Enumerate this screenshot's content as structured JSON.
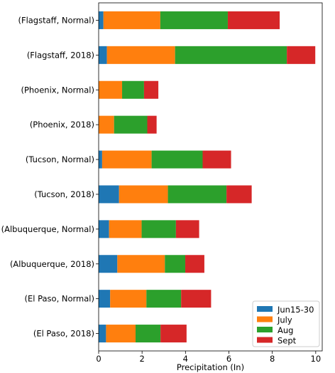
{
  "chart_data": {
    "type": "bar",
    "orientation": "horizontal",
    "stacked": true,
    "title": "",
    "xlabel": "Precipitation (In)",
    "ylabel": "",
    "xlim": [
      0,
      10.3
    ],
    "xticks": [
      "0",
      "2",
      "4",
      "6",
      "8",
      "10"
    ],
    "grid": false,
    "legend_position": "lower-right",
    "categories": [
      "(Flagstaff, Normal)",
      "(Flagstaff, 2018)",
      "(Phoenix, Normal)",
      "(Phoenix, 2018)",
      "(Tucson, Normal)",
      "(Tucson, 2018)",
      "(Albuquerque, Normal)",
      "(Albuquerque, 2018)",
      "(El Paso, Normal)",
      "(El Paso, 2018)"
    ],
    "series": [
      {
        "name": "Jun15-30",
        "color": "#1f77b4",
        "values": [
          0.22,
          0.38,
          0.0,
          0.0,
          0.16,
          0.94,
          0.48,
          0.86,
          0.53,
          0.34
        ]
      },
      {
        "name": "July",
        "color": "#ff7f0e",
        "values": [
          2.62,
          3.14,
          1.08,
          0.71,
          2.28,
          2.25,
          1.5,
          2.19,
          1.67,
          1.36
        ]
      },
      {
        "name": "Aug",
        "color": "#2ca02c",
        "values": [
          3.11,
          5.15,
          1.01,
          1.53,
          2.35,
          2.7,
          1.58,
          0.94,
          1.6,
          1.15
        ]
      },
      {
        "name": "Sept",
        "color": "#d62728",
        "values": [
          2.39,
          1.31,
          0.66,
          0.43,
          1.31,
          1.16,
          1.07,
          0.88,
          1.38,
          1.2
        ]
      }
    ]
  }
}
